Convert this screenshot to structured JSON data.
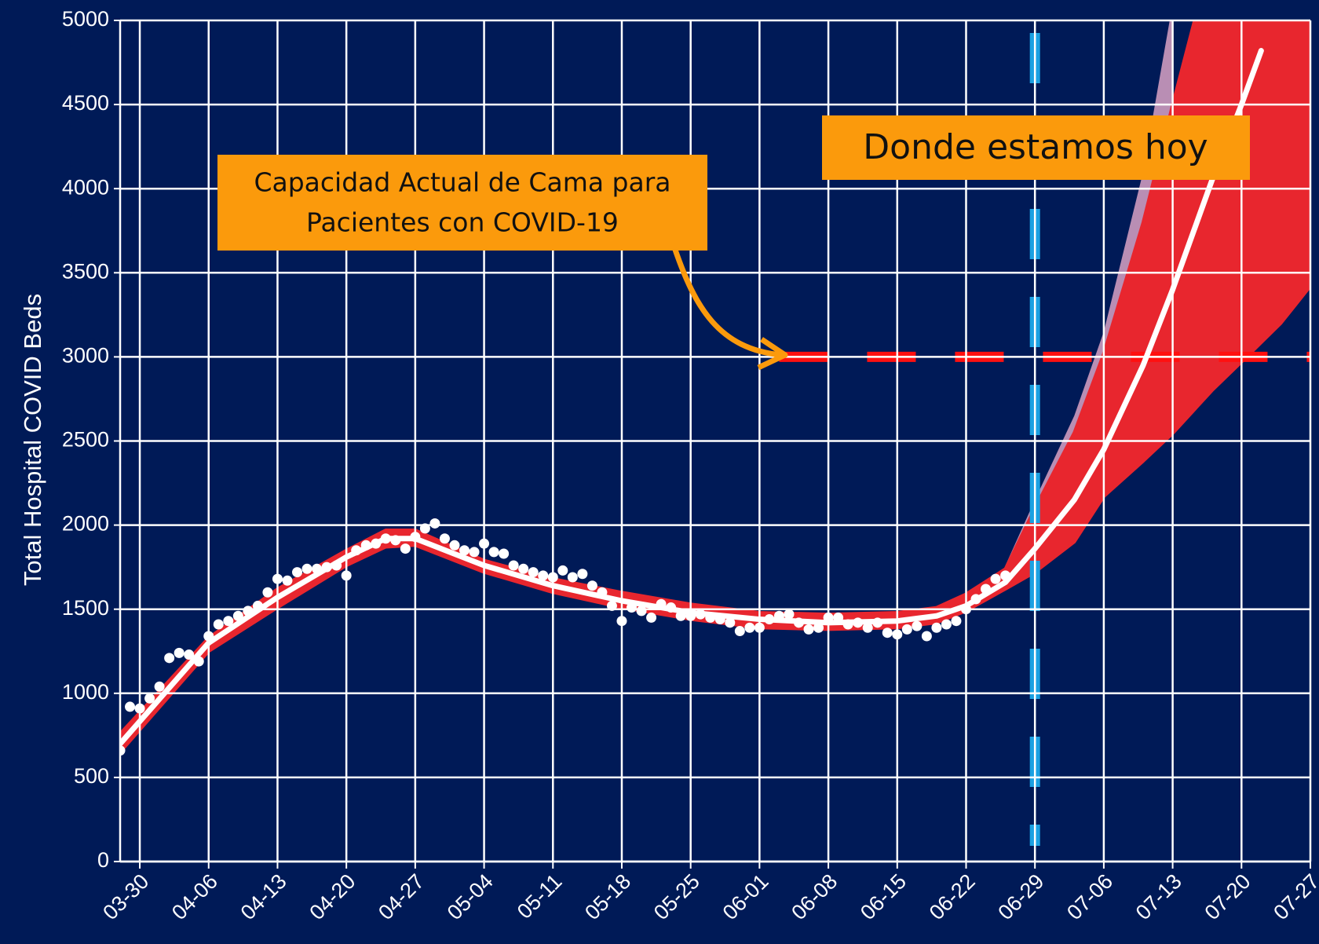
{
  "chart_data": {
    "type": "scatter",
    "y_label": "Total Hospital COVID Beds",
    "xlim": [
      "03-28",
      "07-27"
    ],
    "ylim": [
      0,
      5000
    ],
    "xticks": [
      "03-30",
      "04-06",
      "04-13",
      "04-20",
      "04-27",
      "05-04",
      "05-11",
      "05-18",
      "05-25",
      "06-01",
      "06-08",
      "06-15",
      "06-22",
      "06-29",
      "07-06",
      "07-13",
      "07-20",
      "07-27"
    ],
    "yticks": [
      0,
      500,
      1000,
      1500,
      2000,
      2500,
      3000,
      3500,
      4000,
      4500,
      5000
    ],
    "grid": true,
    "background": "#001a57",
    "points": {
      "color": "#ffffff",
      "x": [
        "03-28",
        "03-29",
        "03-30",
        "03-31",
        "04-01",
        "04-02",
        "04-03",
        "04-04",
        "04-05",
        "04-06",
        "04-07",
        "04-08",
        "04-09",
        "04-10",
        "04-11",
        "04-12",
        "04-13",
        "04-14",
        "04-15",
        "04-16",
        "04-17",
        "04-18",
        "04-19",
        "04-20",
        "04-21",
        "04-22",
        "04-23",
        "04-24",
        "04-25",
        "04-26",
        "04-27",
        "04-28",
        "04-29",
        "04-30",
        "05-01",
        "05-02",
        "05-03",
        "05-04",
        "05-05",
        "05-06",
        "05-07",
        "05-08",
        "05-09",
        "05-10",
        "05-11",
        "05-12",
        "05-13",
        "05-14",
        "05-15",
        "05-16",
        "05-17",
        "05-18",
        "05-19",
        "05-20",
        "05-21",
        "05-22",
        "05-23",
        "05-24",
        "05-25",
        "05-26",
        "05-27",
        "05-28",
        "05-29",
        "05-30",
        "05-31",
        "06-01",
        "06-02",
        "06-03",
        "06-04",
        "06-05",
        "06-06",
        "06-07",
        "06-08",
        "06-09",
        "06-10",
        "06-11",
        "06-12",
        "06-13",
        "06-14",
        "06-15",
        "06-16",
        "06-17",
        "06-18",
        "06-19",
        "06-20",
        "06-21",
        "06-22",
        "06-23",
        "06-24",
        "06-25",
        "06-26"
      ],
      "values": [
        660,
        920,
        910,
        970,
        1040,
        1210,
        1240,
        1230,
        1190,
        1340,
        1410,
        1430,
        1460,
        1490,
        1520,
        1600,
        1680,
        1670,
        1720,
        1740,
        1740,
        1750,
        1760,
        1700,
        1850,
        1880,
        1890,
        1920,
        1910,
        1860,
        1930,
        1980,
        2010,
        1920,
        1880,
        1850,
        1840,
        1890,
        1840,
        1830,
        1760,
        1740,
        1720,
        1700,
        1690,
        1730,
        1690,
        1710,
        1640,
        1600,
        1520,
        1430,
        1510,
        1490,
        1450,
        1530,
        1510,
        1460,
        1460,
        1470,
        1450,
        1440,
        1420,
        1370,
        1390,
        1390,
        1440,
        1460,
        1470,
        1420,
        1380,
        1390,
        1450,
        1450,
        1410,
        1420,
        1390,
        1420,
        1360,
        1350,
        1380,
        1400,
        1340,
        1390,
        1410,
        1430,
        1500,
        1560,
        1620,
        1680,
        1700
      ]
    },
    "band": {
      "color": "#e8262e",
      "x": [
        "03-28",
        "04-06",
        "04-13",
        "04-20",
        "04-24",
        "04-27",
        "05-04",
        "05-11",
        "05-18",
        "05-25",
        "06-01",
        "06-08",
        "06-15",
        "06-19",
        "06-22",
        "06-26",
        "06-29",
        "07-03",
        "07-06",
        "07-10",
        "07-13",
        "07-17",
        "07-20",
        "07-24",
        "07-27"
      ],
      "lower": [
        650,
        1250,
        1510,
        1760,
        1870,
        1880,
        1720,
        1600,
        1510,
        1440,
        1390,
        1380,
        1390,
        1420,
        1490,
        1620,
        1720,
        1900,
        2170,
        2380,
        2545,
        2800,
        2970,
        3200,
        3420
      ],
      "upper": [
        760,
        1330,
        1620,
        1850,
        1970,
        1970,
        1790,
        1680,
        1600,
        1530,
        1480,
        1470,
        1480,
        1510,
        1590,
        1740,
        2100,
        2550,
        3020,
        3800,
        4500,
        5400,
        6000,
        6800,
        7500
      ]
    },
    "faded_band": {
      "color": "#d9a3c4",
      "x": [
        "06-26",
        "06-29",
        "07-03",
        "07-06",
        "07-10",
        "07-13"
      ],
      "upper": [
        1760,
        2150,
        2650,
        3150,
        4100,
        5100
      ]
    },
    "fit": {
      "color": "#ffffff",
      "x": [
        "03-28",
        "04-06",
        "04-13",
        "04-20",
        "04-24",
        "04-27",
        "05-04",
        "05-11",
        "05-18",
        "05-25",
        "06-01",
        "06-08",
        "06-15",
        "06-19",
        "06-22",
        "06-26",
        "06-29",
        "07-03",
        "07-06",
        "07-10",
        "07-13",
        "07-17",
        "07-20",
        "07-22"
      ],
      "values": [
        700,
        1300,
        1570,
        1810,
        1920,
        1920,
        1760,
        1640,
        1550,
        1480,
        1440,
        1420,
        1430,
        1460,
        1520,
        1660,
        1860,
        2150,
        2450,
        2950,
        3400,
        4050,
        4500,
        4820
      ]
    },
    "capacity": {
      "value": 3000,
      "x": [
        "06-03",
        "07-27"
      ],
      "color": "#ff1010"
    },
    "today": {
      "x": "06-29",
      "color": "#1ba1e2"
    },
    "annotations": [
      {
        "text": [
          "Capacidad Actual de Cama para",
          "Pacientes con COVID-19"
        ],
        "color": "#fb9a0c"
      },
      {
        "text": "Donde estamos hoy",
        "color": "#fb9a0c"
      }
    ]
  }
}
